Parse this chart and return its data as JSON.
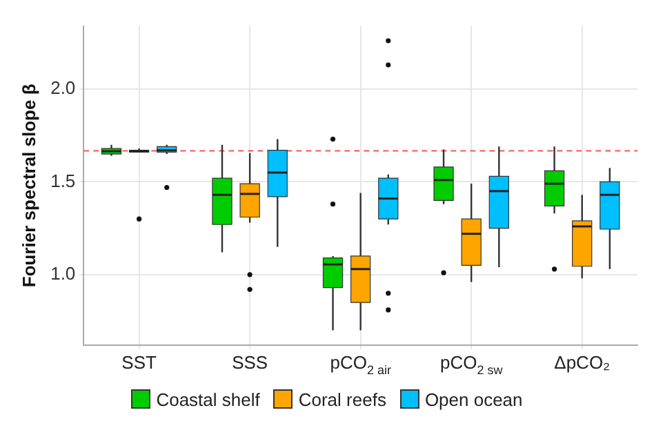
{
  "chart_data": {
    "type": "box",
    "ylabel": "Fourier spectral slope β",
    "categories": [
      "SST",
      "SSS",
      "pCO$_{2 air}$",
      "pCO$_{2 sw}$",
      "ΔpCO₂"
    ],
    "series": [
      {
        "name": "Coastal shelf",
        "color": "#00cc00",
        "boxes": [
          {
            "low": 1.64,
            "q1": 1.65,
            "median": 1.665,
            "q3": 1.68,
            "high": 1.7
          },
          {
            "low": 1.12,
            "q1": 1.27,
            "median": 1.43,
            "q3": 1.52,
            "high": 1.7
          },
          {
            "low": 0.7,
            "q1": 0.93,
            "median": 1.055,
            "q3": 1.09,
            "high": 1.1,
            "outliers": [
              1.73,
              1.38
            ]
          },
          {
            "low": 1.38,
            "q1": 1.4,
            "median": 1.51,
            "q3": 1.58,
            "high": 1.675,
            "outliers": [
              1.01
            ]
          },
          {
            "low": 1.33,
            "q1": 1.37,
            "median": 1.49,
            "q3": 1.56,
            "high": 1.69,
            "outliers": [
              1.03
            ]
          }
        ]
      },
      {
        "name": "Coral reefs",
        "color": "#ffa500",
        "boxes": [
          {
            "low": 1.66,
            "q1": 1.66,
            "median": 1.665,
            "q3": 1.67,
            "high": 1.68,
            "outliers": [
              1.3
            ]
          },
          {
            "low": 1.28,
            "q1": 1.31,
            "median": 1.435,
            "q3": 1.49,
            "high": 1.655,
            "outliers": [
              1.0,
              0.92
            ]
          },
          {
            "low": 0.7,
            "q1": 0.85,
            "median": 1.03,
            "q3": 1.1,
            "high": 1.44
          },
          {
            "low": 0.96,
            "q1": 1.05,
            "median": 1.22,
            "q3": 1.3,
            "high": 1.49
          },
          {
            "low": 0.98,
            "q1": 1.045,
            "median": 1.26,
            "q3": 1.29,
            "high": 1.43
          }
        ]
      },
      {
        "name": "Open ocean",
        "color": "#00bfff",
        "boxes": [
          {
            "low": 1.65,
            "q1": 1.66,
            "median": 1.67,
            "q3": 1.69,
            "high": 1.7,
            "outliers": [
              1.47
            ]
          },
          {
            "low": 1.15,
            "q1": 1.42,
            "median": 1.55,
            "q3": 1.67,
            "high": 1.73
          },
          {
            "low": 1.27,
            "q1": 1.3,
            "median": 1.41,
            "q3": 1.52,
            "high": 1.54,
            "outliers": [
              2.26,
              2.13,
              0.9,
              0.81
            ]
          },
          {
            "low": 1.04,
            "q1": 1.25,
            "median": 1.45,
            "q3": 1.53,
            "high": 1.69
          },
          {
            "low": 1.03,
            "q1": 1.245,
            "median": 1.43,
            "q3": 1.5,
            "high": 1.575
          }
        ]
      }
    ],
    "ylim": [
      0.62,
      2.34
    ],
    "yticks": [
      {
        "value": 1,
        "label": "1.0"
      },
      {
        "value": 1.5,
        "label": "1.5"
      },
      {
        "value": 2,
        "label": "2.0"
      }
    ],
    "ref_lines": [
      {
        "axis": "y",
        "value": 1.667,
        "color": "#ff5050",
        "line_style": "dashed"
      }
    ],
    "grid": true,
    "legend": "bottom"
  }
}
